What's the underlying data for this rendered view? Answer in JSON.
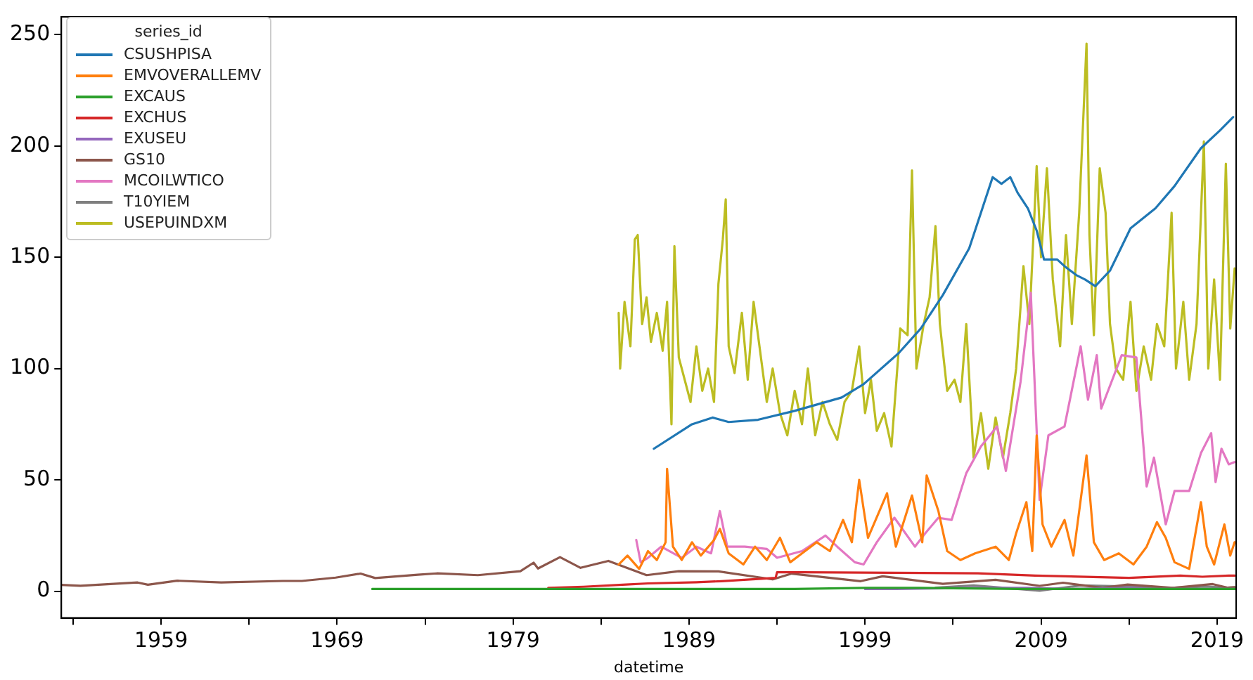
{
  "chart_data": {
    "type": "line",
    "xlabel": "datetime",
    "legend_title": "series_id",
    "legend": "top left",
    "grid": false,
    "marker": "none",
    "line_style": "solid",
    "xlim": [
      "1953-05",
      "2020-02"
    ],
    "ylim": [
      -12,
      258
    ],
    "yticks": [
      0,
      50,
      100,
      150,
      200,
      250
    ],
    "xticks": [
      {
        "value": "1954",
        "label": null
      },
      "1959",
      {
        "value": "1964",
        "label": null
      },
      "1969",
      {
        "value": "1974",
        "label": null
      },
      "1979",
      {
        "value": "1984",
        "label": null
      },
      "1989",
      {
        "value": "1994",
        "label": null
      },
      "1999",
      {
        "value": "2004",
        "label": null
      },
      "2009",
      {
        "value": "2014",
        "label": null
      },
      "2019"
    ],
    "series": [
      {
        "name": "CSUSHPISA",
        "color": "#1f77b4",
        "x": [
          "1987-01",
          "1989-03",
          "1990-05",
          "1991-04",
          "1992-12",
          "1995-01",
          "1997-09",
          "1998-12",
          "2000-12",
          "2002-03",
          "2003-06",
          "2004-12",
          "2005-09",
          "2006-04",
          "2006-10",
          "2007-04",
          "2007-09",
          "2008-04",
          "2008-10",
          "2009-03",
          "2009-12",
          "2010-05",
          "2011-01",
          "2011-07",
          "2012-02",
          "2012-12",
          "2014-02",
          "2015-07",
          "2016-08",
          "2018-02",
          "2019-03",
          "2019-12"
        ],
        "values": [
          64,
          75,
          78,
          76,
          77,
          81,
          87,
          93,
          107,
          118,
          133,
          154,
          172,
          186,
          183,
          186,
          179,
          172,
          162,
          149,
          149,
          146,
          142,
          140,
          137,
          144,
          163,
          172,
          182,
          199,
          207,
          213
        ]
      },
      {
        "name": "EMVOVERALLEMV",
        "color": "#ff7f0e",
        "x": [
          "1985-01",
          "1985-07",
          "1986-03",
          "1986-09",
          "1987-03",
          "1987-09",
          "1987-10",
          "1988-02",
          "1988-08",
          "1989-03",
          "1989-09",
          "1990-06",
          "1990-10",
          "1991-04",
          "1992-02",
          "1992-10",
          "1993-06",
          "1994-03",
          "1994-10",
          "1995-06",
          "1996-04",
          "1997-01",
          "1997-10",
          "1998-04",
          "1998-09",
          "1999-03",
          "2000-04",
          "2000-10",
          "2001-09",
          "2002-04",
          "2002-07",
          "2003-03",
          "2003-09",
          "2004-06",
          "2005-04",
          "2006-06",
          "2007-03",
          "2007-08",
          "2008-03",
          "2008-07",
          "2008-10",
          "2009-02",
          "2009-08",
          "2010-05",
          "2010-11",
          "2011-08",
          "2012-01",
          "2012-08",
          "2013-06",
          "2014-04",
          "2015-01",
          "2015-08",
          "2016-02",
          "2016-08",
          "2017-06",
          "2018-02",
          "2018-06",
          "2018-11",
          "2019-06",
          "2019-10",
          "2020-01"
        ],
        "values": [
          12,
          16,
          10,
          18,
          14,
          22,
          55,
          20,
          14,
          22,
          16,
          23,
          28,
          17,
          12,
          20,
          14,
          24,
          13,
          17,
          22,
          18,
          32,
          22,
          50,
          24,
          44,
          20,
          43,
          22,
          52,
          36,
          18,
          14,
          17,
          20,
          14,
          26,
          40,
          18,
          70,
          30,
          20,
          32,
          16,
          61,
          22,
          14,
          17,
          12,
          20,
          31,
          24,
          13,
          10,
          40,
          20,
          12,
          30,
          16,
          22
        ]
      },
      {
        "name": "EXCAUS",
        "color": "#2ca02c",
        "x": [
          "1971-01",
          "1976-11",
          "1980-01",
          "1986-02",
          "1991-11",
          "1995-01",
          "1999-01",
          "2002-01",
          "2007-11",
          "2009-03",
          "2011-07",
          "2013-06",
          "2016-01",
          "2020-01"
        ],
        "values": [
          1,
          1,
          1,
          1,
          1,
          1,
          1.5,
          1.5,
          1,
          1,
          1,
          1,
          1,
          1
        ]
      },
      {
        "name": "EXCHUS",
        "color": "#d62728",
        "x": [
          "1981-01",
          "1983-01",
          "1985-06",
          "1986-09",
          "1989-06",
          "1990-11",
          "1993-12",
          "1994-01",
          "1995-06",
          "2005-06",
          "2008-09",
          "2014-01",
          "2016-12",
          "2018-03",
          "2019-09",
          "2020-01"
        ],
        "values": [
          1.5,
          2,
          3,
          3.5,
          4,
          4.5,
          6,
          8.5,
          8.5,
          8,
          7,
          6,
          7,
          6.5,
          7,
          7
        ]
      },
      {
        "name": "EXUSEU",
        "color": "#9467bd",
        "x": [
          "1999-01",
          "2000-10",
          "2004-12",
          "2008-04",
          "2010-06",
          "2014-04",
          "2015-04",
          "2018-02",
          "2020-01"
        ],
        "values": [
          1,
          1,
          1.5,
          1.5,
          1,
          1.5,
          1,
          1,
          1
        ]
      },
      {
        "name": "GS10",
        "color": "#8c564b",
        "x": [
          "1953-05",
          "1954-06",
          "1957-09",
          "1958-04",
          "1959-12",
          "1962-06",
          "1965-12",
          "1967-01",
          "1968-12",
          "1970-05",
          "1971-03",
          "1973-08",
          "1974-09",
          "1977-01",
          "1979-06",
          "1980-03",
          "1980-06",
          "1981-09",
          "1982-11",
          "1984-06",
          "1986-08",
          "1988-06",
          "1990-09",
          "1993-10",
          "1994-11",
          "1998-10",
          "2000-01",
          "2003-06",
          "2006-06",
          "2008-12",
          "2010-04",
          "2012-07",
          "2013-12",
          "2016-07",
          "2018-10",
          "2019-08",
          "2020-01"
        ],
        "values": [
          2.8,
          2.4,
          3.9,
          2.9,
          4.7,
          3.9,
          4.6,
          4.6,
          6.1,
          7.9,
          5.9,
          7.4,
          8.0,
          7.2,
          9.0,
          12.8,
          10.2,
          15.3,
          10.5,
          13.6,
          7.2,
          9.0,
          8.9,
          5.3,
          7.9,
          4.5,
          6.7,
          3.3,
          5.1,
          2.4,
          3.8,
          1.5,
          3.0,
          1.5,
          3.2,
          1.6,
          1.8
        ]
      },
      {
        "name": "MCOILWTICO",
        "color": "#e377c2",
        "x": [
          "1986-01",
          "1986-04",
          "1986-09",
          "1987-06",
          "1988-08",
          "1989-06",
          "1990-04",
          "1990-10",
          "1991-03",
          "1992-03",
          "1993-06",
          "1994-01",
          "1995-06",
          "1996-10",
          "1997-06",
          "1998-06",
          "1998-12",
          "1999-09",
          "2000-09",
          "2001-11",
          "2002-06",
          "2003-03",
          "2003-12",
          "2004-10",
          "2005-08",
          "2006-07",
          "2007-01",
          "2007-11",
          "2008-06",
          "2008-12",
          "2009-06",
          "2010-05",
          "2011-04",
          "2011-09",
          "2012-03",
          "2012-06",
          "2013-08",
          "2014-06",
          "2015-01",
          "2015-06",
          "2016-02",
          "2016-08",
          "2017-06",
          "2018-02",
          "2018-09",
          "2018-12",
          "2019-04",
          "2019-09",
          "2020-01"
        ],
        "values": [
          23,
          13,
          15,
          20,
          15,
          20,
          17,
          36,
          20,
          20,
          19,
          15,
          18,
          25,
          20,
          13,
          12,
          22,
          33,
          20,
          26,
          33,
          32,
          53,
          65,
          74,
          54,
          94,
          134,
          41,
          70,
          74,
          110,
          86,
          106,
          82,
          106,
          105,
          47,
          60,
          30,
          45,
          45,
          62,
          71,
          49,
          64,
          57,
          58
        ]
      },
      {
        "name": "T10YIEM",
        "color": "#7f7f7f",
        "x": [
          "2003-01",
          "2005-03",
          "2008-12",
          "2011-04",
          "2013-07",
          "2016-02",
          "2018-05",
          "2019-08",
          "2020-01"
        ],
        "values": [
          1.6,
          2.6,
          0.2,
          2.6,
          2.2,
          1.4,
          2.1,
          1.6,
          1.7
        ]
      },
      {
        "name": "USEPUINDXM",
        "color": "#bcbd22",
        "x": [
          "1985-01",
          "1985-02",
          "1985-05",
          "1985-09",
          "1985-12",
          "1986-02",
          "1986-05",
          "1986-08",
          "1986-11",
          "1987-03",
          "1987-07",
          "1987-10",
          "1988-01",
          "1988-03",
          "1988-06",
          "1988-10",
          "1989-02",
          "1989-06",
          "1989-10",
          "1990-02",
          "1990-06",
          "1990-09",
          "1990-12",
          "1991-02",
          "1991-04",
          "1991-08",
          "1992-01",
          "1992-05",
          "1992-09",
          "1993-01",
          "1993-06",
          "1993-10",
          "1994-03",
          "1994-08",
          "1995-01",
          "1995-06",
          "1995-10",
          "1996-03",
          "1996-08",
          "1997-01",
          "1997-06",
          "1997-11",
          "1998-04",
          "1998-09",
          "1999-01",
          "1999-05",
          "1999-09",
          "2000-02",
          "2000-07",
          "2001-01",
          "2001-06",
          "2001-09",
          "2001-12",
          "2002-05",
          "2002-09",
          "2003-01",
          "2003-04",
          "2003-09",
          "2004-02",
          "2004-06",
          "2004-10",
          "2005-03",
          "2005-08",
          "2006-01",
          "2006-06",
          "2006-11",
          "2007-04",
          "2007-08",
          "2008-01",
          "2008-05",
          "2008-10",
          "2009-01",
          "2009-05",
          "2009-09",
          "2010-02",
          "2010-06",
          "2010-10",
          "2011-03",
          "2011-08",
          "2011-10",
          "2012-01",
          "2012-05",
          "2012-09",
          "2012-12",
          "2013-04",
          "2013-09",
          "2014-02",
          "2014-06",
          "2014-11",
          "2015-04",
          "2015-08",
          "2016-01",
          "2016-06",
          "2016-09",
          "2017-02",
          "2017-06",
          "2017-11",
          "2018-04",
          "2018-07",
          "2018-11",
          "2019-03",
          "2019-07",
          "2019-10",
          "2020-01"
        ],
        "values": [
          125,
          100,
          130,
          110,
          158,
          160,
          120,
          132,
          112,
          125,
          108,
          130,
          75,
          155,
          105,
          95,
          85,
          110,
          90,
          100,
          85,
          138,
          158,
          176,
          110,
          98,
          125,
          95,
          130,
          110,
          85,
          100,
          80,
          70,
          90,
          75,
          100,
          70,
          85,
          75,
          68,
          85,
          90,
          110,
          80,
          95,
          72,
          80,
          65,
          118,
          115,
          189,
          100,
          120,
          132,
          164,
          120,
          90,
          95,
          85,
          120,
          60,
          80,
          55,
          78,
          60,
          80,
          100,
          146,
          120,
          191,
          150,
          190,
          140,
          110,
          160,
          120,
          170,
          246,
          160,
          115,
          190,
          170,
          120,
          100,
          95,
          130,
          90,
          110,
          95,
          120,
          110,
          170,
          100,
          130,
          95,
          120,
          202,
          100,
          140,
          95,
          192,
          118,
          145
        ]
      }
    ]
  }
}
